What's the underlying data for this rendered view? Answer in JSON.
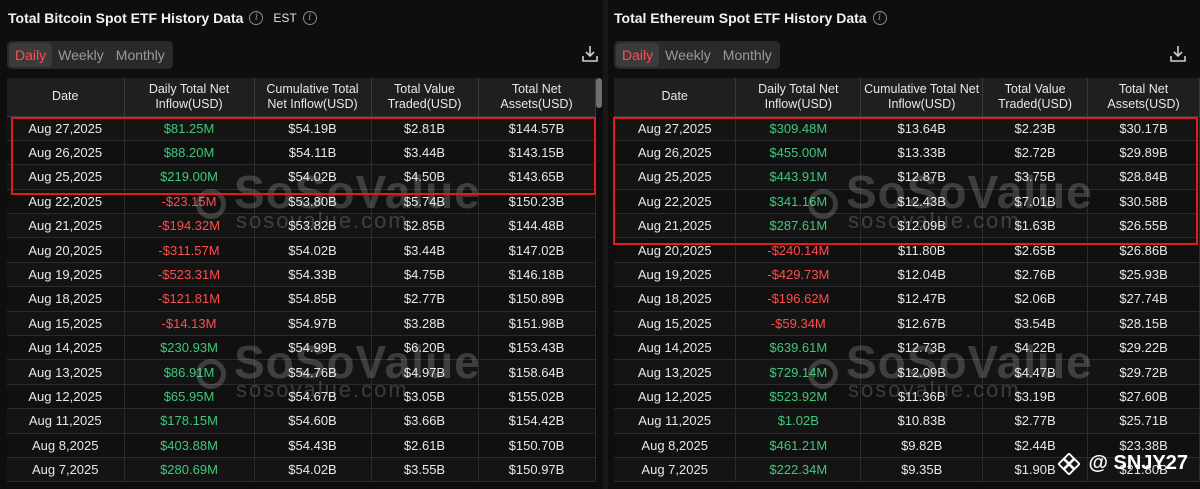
{
  "btc": {
    "title": "Total Bitcoin Spot ETF History Data",
    "timezone": "EST",
    "tabs": [
      "Daily",
      "Weekly",
      "Monthly"
    ],
    "active_tab": "Daily",
    "columns": [
      "Date",
      "Daily Total Net Inflow(USD)",
      "Cumulative Total Net Inflow(USD)",
      "Total Value Traded(USD)",
      "Total Net Assets(USD)"
    ],
    "rows": [
      [
        "Aug 27,2025",
        "$81.25M",
        "$54.19B",
        "$2.81B",
        "$144.57B"
      ],
      [
        "Aug 26,2025",
        "$88.20M",
        "$54.11B",
        "$3.44B",
        "$143.15B"
      ],
      [
        "Aug 25,2025",
        "$219.00M",
        "$54.02B",
        "$4.50B",
        "$143.65B"
      ],
      [
        "Aug 22,2025",
        "-$23.15M",
        "$53.80B",
        "$5.74B",
        "$150.23B"
      ],
      [
        "Aug 21,2025",
        "-$194.32M",
        "$53.82B",
        "$2.85B",
        "$144.48B"
      ],
      [
        "Aug 20,2025",
        "-$311.57M",
        "$54.02B",
        "$3.44B",
        "$147.02B"
      ],
      [
        "Aug 19,2025",
        "-$523.31M",
        "$54.33B",
        "$4.75B",
        "$146.18B"
      ],
      [
        "Aug 18,2025",
        "-$121.81M",
        "$54.85B",
        "$2.77B",
        "$150.89B"
      ],
      [
        "Aug 15,2025",
        "-$14.13M",
        "$54.97B",
        "$3.28B",
        "$151.98B"
      ],
      [
        "Aug 14,2025",
        "$230.93M",
        "$54.99B",
        "$6.20B",
        "$153.43B"
      ],
      [
        "Aug 13,2025",
        "$86.91M",
        "$54.76B",
        "$4.97B",
        "$158.64B"
      ],
      [
        "Aug 12,2025",
        "$65.95M",
        "$54.67B",
        "$3.05B",
        "$155.02B"
      ],
      [
        "Aug 11,2025",
        "$178.15M",
        "$54.60B",
        "$3.66B",
        "$154.42B"
      ],
      [
        "Aug 8,2025",
        "$403.88M",
        "$54.43B",
        "$2.61B",
        "$150.70B"
      ],
      [
        "Aug 7,2025",
        "$280.69M",
        "$54.02B",
        "$3.55B",
        "$150.97B"
      ]
    ]
  },
  "eth": {
    "title": "Total Ethereum Spot ETF History Data",
    "tabs": [
      "Daily",
      "Weekly",
      "Monthly"
    ],
    "active_tab": "Daily",
    "columns": [
      "Date",
      "Daily Total Net Inflow(USD)",
      "Cumulative Total Net Inflow(USD)",
      "Total Value Traded(USD)",
      "Total Net Assets(USD)"
    ],
    "rows": [
      [
        "Aug 27,2025",
        "$309.48M",
        "$13.64B",
        "$2.23B",
        "$30.17B"
      ],
      [
        "Aug 26,2025",
        "$455.00M",
        "$13.33B",
        "$2.72B",
        "$29.89B"
      ],
      [
        "Aug 25,2025",
        "$443.91M",
        "$12.87B",
        "$3.75B",
        "$28.84B"
      ],
      [
        "Aug 22,2025",
        "$341.16M",
        "$12.43B",
        "$7.01B",
        "$30.58B"
      ],
      [
        "Aug 21,2025",
        "$287.61M",
        "$12.09B",
        "$1.63B",
        "$26.55B"
      ],
      [
        "Aug 20,2025",
        "-$240.14M",
        "$11.80B",
        "$2.65B",
        "$26.86B"
      ],
      [
        "Aug 19,2025",
        "-$429.73M",
        "$12.04B",
        "$2.76B",
        "$25.93B"
      ],
      [
        "Aug 18,2025",
        "-$196.62M",
        "$12.47B",
        "$2.06B",
        "$27.74B"
      ],
      [
        "Aug 15,2025",
        "-$59.34M",
        "$12.67B",
        "$3.54B",
        "$28.15B"
      ],
      [
        "Aug 14,2025",
        "$639.61M",
        "$12.73B",
        "$4.22B",
        "$29.22B"
      ],
      [
        "Aug 13,2025",
        "$729.14M",
        "$12.09B",
        "$4.47B",
        "$29.72B"
      ],
      [
        "Aug 12,2025",
        "$523.92M",
        "$11.36B",
        "$3.19B",
        "$27.60B"
      ],
      [
        "Aug 11,2025",
        "$1.02B",
        "$10.83B",
        "$2.77B",
        "$25.71B"
      ],
      [
        "Aug 8,2025",
        "$461.21M",
        "$9.82B",
        "$2.44B",
        "$23.38B"
      ],
      [
        "Aug 7,2025",
        "$222.34M",
        "$9.35B",
        "$1.90B",
        "$21.80B"
      ]
    ]
  },
  "watermark": {
    "logo": "SoSoValue",
    "url": "sosovalue.com"
  },
  "brand": {
    "text": "@ SNJY27",
    "icon": "binance-square-icon"
  },
  "colors": {
    "positive": "#3fc87a",
    "negative": "#ff4d4d",
    "highlight": "#e11b22",
    "active_tab": "#ff4d4d"
  }
}
